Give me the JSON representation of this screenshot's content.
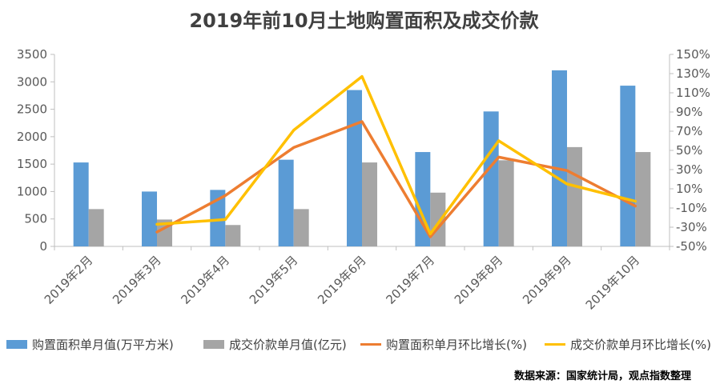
{
  "title": "2019年前10月土地购置面积及成交价款",
  "source": "数据来源：国家统计局，观点指数整理",
  "colors": {
    "area_bar": "#5B9BD5",
    "price_bar": "#A5A5A5",
    "area_line": "#ED7D31",
    "price_line": "#FFC000"
  },
  "chart_data": {
    "type": "bar+line",
    "categories": [
      "2019年2月",
      "2019年3月",
      "2019年4月",
      "2019年5月",
      "2019年6月",
      "2019年7月",
      "2019年8月",
      "2019年9月",
      "2019年10月"
    ],
    "y_left": {
      "range": [
        0,
        3500
      ],
      "ticks": [
        "0",
        "500",
        "1000",
        "1500",
        "2000",
        "2500",
        "3000",
        "3500"
      ]
    },
    "y_right": {
      "range": [
        -50,
        150
      ],
      "ticks": [
        "-50%",
        "-30%",
        "-10%",
        "10%",
        "30%",
        "50%",
        "70%",
        "90%",
        "110%",
        "130%",
        "150%"
      ]
    },
    "bar_series": [
      {
        "name": "购置面积单月值(万平方米)",
        "axis": "left",
        "values": [
          1530,
          1000,
          1030,
          1580,
          2850,
          1720,
          2460,
          3210,
          2930
        ]
      },
      {
        "name": "成交价款单月值(亿元)",
        "axis": "left",
        "values": [
          680,
          490,
          390,
          680,
          1530,
          980,
          1570,
          1810,
          1720
        ]
      }
    ],
    "line_series": [
      {
        "name": "购置面积单月环比增长(%)",
        "axis": "right",
        "values": [
          -35,
          3,
          53,
          80,
          -40,
          43,
          29,
          -8
        ]
      },
      {
        "name": "成交价款单月环比增长(%)",
        "axis": "right",
        "values": [
          -27,
          -22,
          71,
          127,
          -37,
          60,
          15,
          -3
        ]
      }
    ],
    "line_start_index": 1,
    "grid": false,
    "legend_position": "bottom"
  }
}
